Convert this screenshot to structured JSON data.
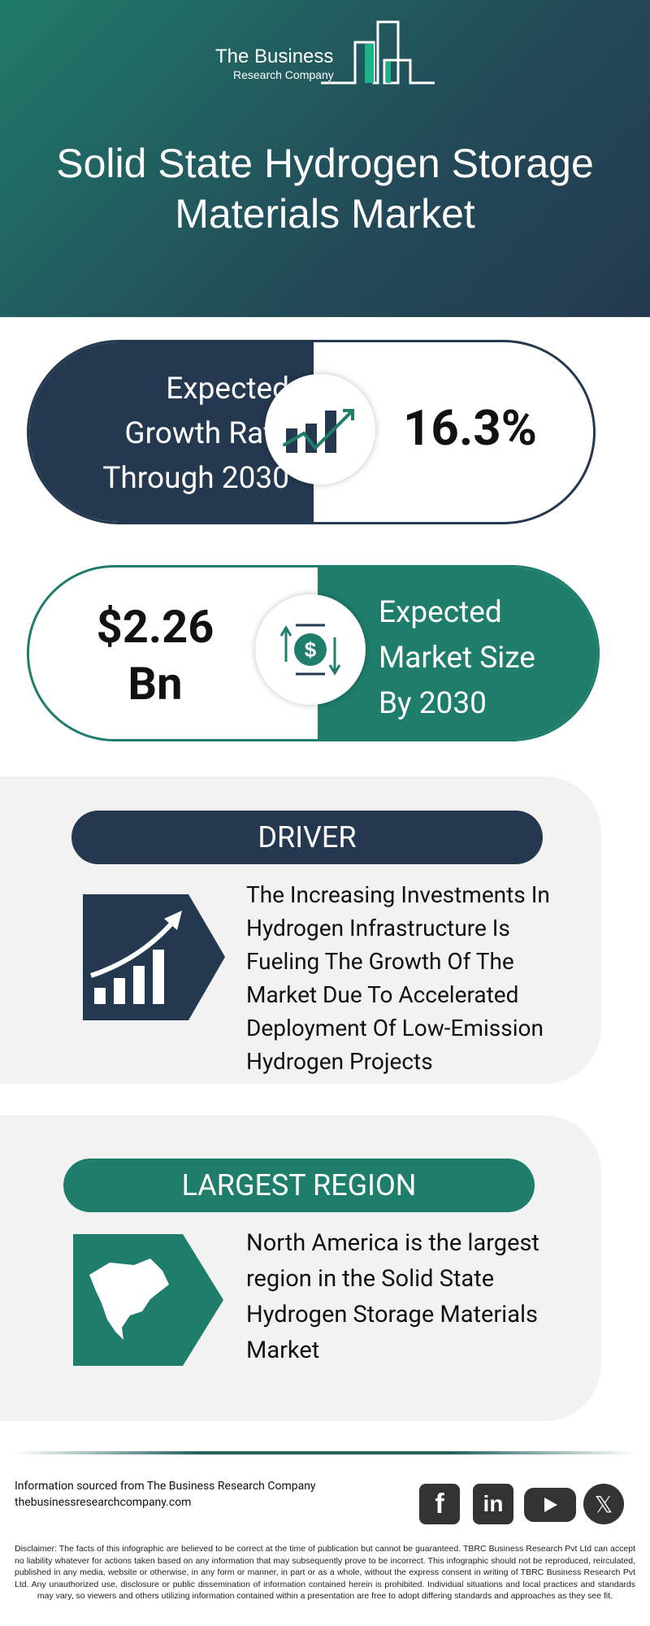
{
  "logo": {
    "line1": "The Business",
    "line2": "Research Company"
  },
  "header": {
    "title_line1": "Solid State Hydrogen Storage",
    "title_line2": "Materials Market"
  },
  "growth": {
    "label_lines": [
      "Expected",
      "Growth Rate",
      "Through 2030"
    ],
    "value": "16.3%",
    "icon": "growth-chart-icon"
  },
  "market_size": {
    "value_lines": [
      "$2.26",
      "Bn"
    ],
    "label_lines": [
      "Expected",
      "Market Size",
      "By 2030"
    ],
    "icon": "dollar-exchange-icon"
  },
  "driver": {
    "title": "DRIVER",
    "text": "The Increasing Investments In Hydrogen Infrastructure Is Fueling The Growth Of The Market Due To Accelerated Deployment Of Low-Emission Hydrogen Projects",
    "icon": "rising-bars-icon"
  },
  "region": {
    "title": "LARGEST REGION",
    "text": "North America is the largest region in the Solid State Hydrogen Storage Materials Market",
    "icon": "north-america-map-icon"
  },
  "footer": {
    "source": "Information sourced from The Business Research Company",
    "website": "thebusinessresearchcompany.com",
    "social": [
      "facebook",
      "linkedin",
      "youtube",
      "x"
    ]
  },
  "disclaimer": "Disclaimer: The facts of this infographic are believed to be correct at the time of publication but cannot be guaranteed. TBRC Business Research Pvt Ltd can accept no liability whatever for actions taken based on any information that may subsequently prove to be incorrect. This infographic should not be reproduced, reirculated, published in any media, website or otherwise, in any form or manner, in part or as a whole, without the express consent in writing of TBRC Business Research Pvt Ltd. Any unauthorized use, disclosure or public dissemination of information contained herein is prohibited. Individual situations and local practices and standards may vary, so viewers and others utilizing information contained within a presentation are free to adopt differing standards and approaches as they see fit.",
  "colors": {
    "navy": "#24384f",
    "teal": "#1f7d6b",
    "card": "#f2f2f2"
  }
}
